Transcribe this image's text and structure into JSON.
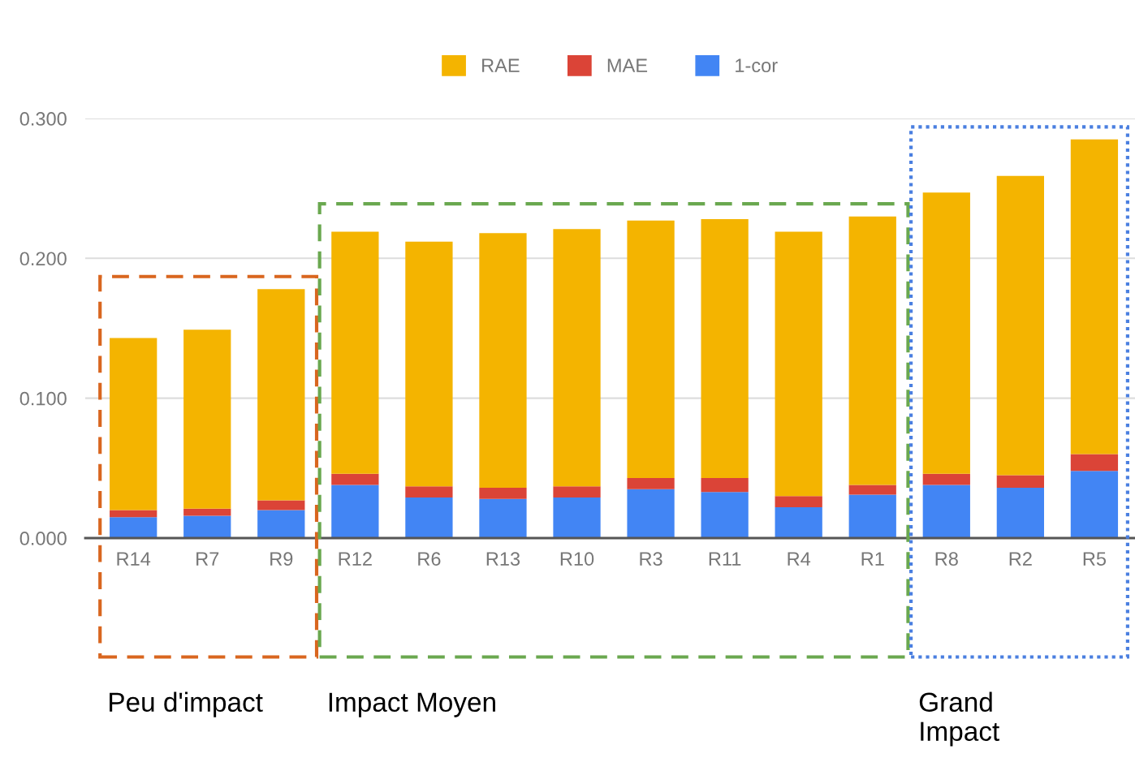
{
  "chart_data": {
    "type": "bar",
    "stacked": true,
    "categories": [
      "R14",
      "R7",
      "R9",
      "R12",
      "R6",
      "R13",
      "R10",
      "R3",
      "R11",
      "R4",
      "R1",
      "R8",
      "R2",
      "R5"
    ],
    "series": [
      {
        "name": "1-cor",
        "color": "#4285f4",
        "values": [
          0.015,
          0.016,
          0.02,
          0.038,
          0.029,
          0.028,
          0.029,
          0.035,
          0.033,
          0.022,
          0.031,
          0.038,
          0.036,
          0.048
        ]
      },
      {
        "name": "MAE",
        "color": "#db4437",
        "values": [
          0.005,
          0.005,
          0.007,
          0.008,
          0.008,
          0.008,
          0.008,
          0.008,
          0.01,
          0.008,
          0.007,
          0.008,
          0.009,
          0.012
        ]
      },
      {
        "name": "RAE",
        "color": "#f4b400",
        "values": [
          0.123,
          0.128,
          0.151,
          0.173,
          0.175,
          0.182,
          0.184,
          0.184,
          0.185,
          0.189,
          0.192,
          0.201,
          0.214,
          0.225
        ]
      }
    ],
    "ylim": [
      0,
      0.3
    ],
    "yticks": [
      {
        "value": 0,
        "label": "0.000"
      },
      {
        "value": 0.1,
        "label": "0.100"
      },
      {
        "value": 0.2,
        "label": "0.200"
      },
      {
        "value": 0.3,
        "label": "0.300"
      }
    ],
    "grid": "y",
    "legend": "top",
    "annotations": [
      "Peu d'impact",
      "Impact Moyen",
      "Grand\nImpact"
    ]
  }
}
